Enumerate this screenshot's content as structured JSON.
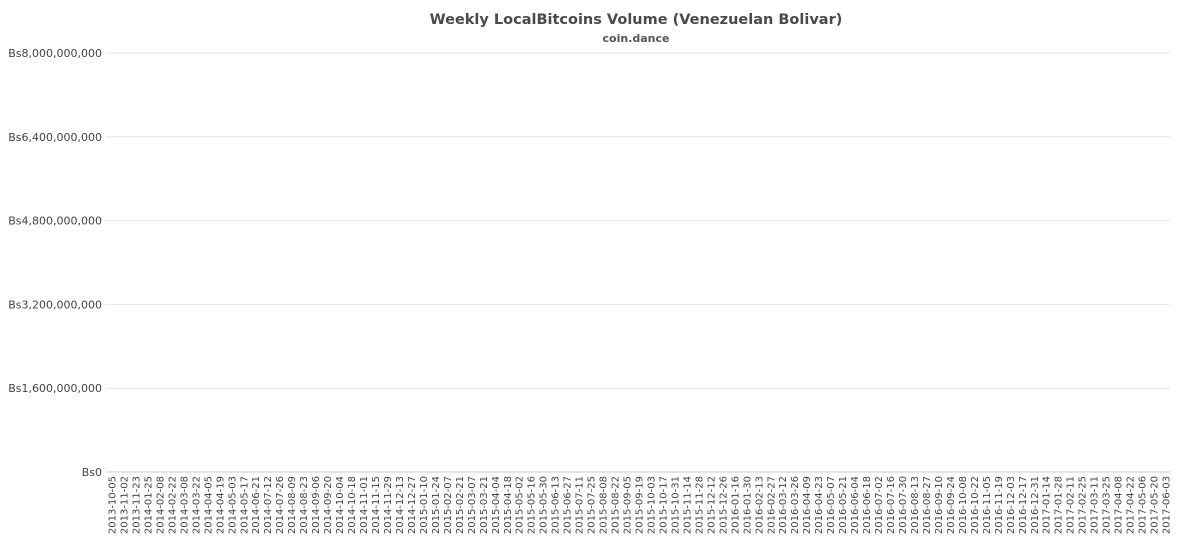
{
  "chart_data": {
    "type": "bar",
    "title": "Weekly LocalBitcoins Volume (Venezuelan Bolivar)",
    "subtitle": "coin.dance",
    "xlabel": "",
    "ylabel": "",
    "ylim": [
      0,
      8000000000
    ],
    "y_ticks": [
      {
        "value": 0,
        "label": "Bs0"
      },
      {
        "value": 1600000000,
        "label": "Bs1,600,000,000"
      },
      {
        "value": 3200000000,
        "label": "Bs3,200,000,000"
      },
      {
        "value": 4800000000,
        "label": "Bs4,800,000,000"
      },
      {
        "value": 6400000000,
        "label": "Bs6,400,000,000"
      },
      {
        "value": 8000000000,
        "label": "Bs8,000,000,000"
      }
    ],
    "grid": true,
    "bar_color": "#4a90e2",
    "x_tick_labels": [
      "2013-10-05",
      "2013-11-02",
      "2013-11-23",
      "2014-01-25",
      "2014-02-08",
      "2014-02-22",
      "2014-03-08",
      "2014-03-22",
      "2014-04-05",
      "2014-04-19",
      "2014-05-03",
      "2014-05-17",
      "2014-06-21",
      "2014-07-12",
      "2014-07-26",
      "2014-08-09",
      "2014-08-23",
      "2014-09-06",
      "2014-09-20",
      "2014-10-04",
      "2014-10-18",
      "2014-11-01",
      "2014-11-15",
      "2014-11-29",
      "2014-12-13",
      "2014-12-27",
      "2015-01-10",
      "2015-01-24",
      "2015-02-07",
      "2015-02-21",
      "2015-03-07",
      "2015-03-21",
      "2015-04-04",
      "2015-04-18",
      "2015-05-02",
      "2015-05-16",
      "2015-05-30",
      "2015-06-13",
      "2015-06-27",
      "2015-07-11",
      "2015-07-25",
      "2015-08-08",
      "2015-08-22",
      "2015-09-05",
      "2015-09-19",
      "2015-10-03",
      "2015-10-17",
      "2015-10-31",
      "2015-11-14",
      "2015-11-28",
      "2015-12-12",
      "2015-12-26",
      "2016-01-16",
      "2016-01-30",
      "2016-02-13",
      "2016-02-27",
      "2016-03-12",
      "2016-03-26",
      "2016-04-09",
      "2016-04-23",
      "2016-05-07",
      "2016-05-21",
      "2016-06-04",
      "2016-06-18",
      "2016-07-02",
      "2016-07-16",
      "2016-07-30",
      "2016-08-13",
      "2016-08-27",
      "2016-09-10",
      "2016-09-24",
      "2016-10-08",
      "2016-10-22",
      "2016-11-05",
      "2016-11-19",
      "2016-12-03",
      "2016-12-17",
      "2016-12-31",
      "2017-01-14",
      "2017-01-28",
      "2017-02-11",
      "2017-02-25",
      "2017-03-11",
      "2017-03-25",
      "2017-04-08",
      "2017-04-22",
      "2017-05-06",
      "2017-05-20",
      "2017-06-03"
    ],
    "values": [
      0,
      0,
      0,
      0,
      0,
      0,
      0,
      0,
      0,
      0,
      0,
      0,
      0,
      0,
      0,
      0,
      0,
      0,
      0,
      0,
      0,
      0,
      0,
      0,
      0,
      0,
      0,
      0,
      0,
      0,
      0,
      0,
      0,
      0,
      0,
      0,
      0,
      0,
      0,
      0,
      0,
      0,
      0,
      0,
      0,
      0,
      0,
      0,
      0,
      0,
      0,
      0,
      0,
      0,
      0,
      0,
      0,
      0,
      0,
      0,
      0,
      0,
      0,
      0,
      0,
      0,
      0,
      0,
      0,
      0,
      0,
      0,
      0,
      0,
      0,
      0,
      0,
      0,
      0,
      0,
      0,
      0,
      0,
      0,
      0,
      0,
      0,
      0,
      0,
      0,
      0,
      0,
      0,
      0,
      0,
      0,
      0,
      0,
      0,
      0,
      0,
      0,
      0,
      0,
      0,
      0,
      0,
      0,
      0,
      0,
      0,
      0,
      0,
      0,
      0,
      0,
      0,
      0,
      0,
      0,
      0,
      0,
      0,
      0,
      0,
      0,
      0,
      0,
      0,
      0,
      0,
      0,
      0,
      0,
      0,
      0,
      0,
      0,
      0,
      0,
      0,
      0,
      0,
      0,
      0,
      0,
      0,
      0,
      0,
      0,
      0,
      0,
      0,
      0,
      0,
      0,
      0,
      0,
      0,
      0,
      0,
      0,
      0,
      0,
      0,
      0,
      0,
      0,
      0,
      0,
      0,
      0,
      0,
      0,
      0,
      0,
      0,
      0,
      0,
      0,
      0,
      0,
      0,
      0,
      0,
      0,
      0,
      0,
      0,
      0,
      0,
      0,
      0,
      0,
      0,
      0,
      0,
      0,
      0,
      0,
      0,
      0,
      0,
      0,
      0,
      0,
      0,
      0,
      0,
      0,
      0,
      0,
      0,
      0,
      0,
      0,
      0,
      0,
      0,
      0,
      0,
      0,
      0,
      0,
      0,
      0,
      0,
      0,
      0,
      0,
      0,
      0,
      0,
      0,
      0,
      0,
      0,
      0,
      0,
      0,
      0,
      0,
      0,
      0,
      0,
      0,
      0,
      0,
      0,
      0,
      0,
      0,
      0,
      0,
      0,
      0,
      0,
      0,
      0,
      0,
      0,
      0,
      0,
      0,
      0,
      0,
      0,
      0,
      0,
      0,
      0,
      0,
      0,
      0,
      0,
      0,
      0,
      0,
      0,
      0,
      0,
      0,
      0,
      0,
      0,
      0,
      0,
      0,
      0,
      0,
      0,
      0,
      0,
      0,
      0,
      0,
      0,
      0,
      0,
      0,
      0,
      0,
      0,
      0,
      0,
      0,
      0,
      0,
      0,
      0,
      0,
      0,
      0,
      0,
      0,
      0,
      0,
      0,
      0,
      0,
      0,
      0,
      0,
      0,
      0,
      0,
      0,
      0,
      0,
      0,
      0,
      0,
      0,
      0,
      0,
      0,
      0,
      0,
      0,
      0,
      0,
      0,
      0,
      0,
      0,
      0,
      0,
      0,
      0,
      0,
      0,
      0,
      0,
      0,
      0,
      0,
      0,
      0,
      0,
      0,
      0,
      0,
      0,
      0,
      0,
      0,
      0,
      0,
      0,
      0,
      0,
      0,
      0,
      0,
      0,
      0,
      0,
      0,
      0,
      0,
      0,
      0,
      0,
      0,
      0,
      0,
      0,
      0,
      0,
      0,
      0,
      0,
      0,
      0,
      0,
      0,
      0,
      0,
      0,
      0,
      0,
      0,
      0,
      0,
      0,
      0,
      0,
      0,
      0,
      0,
      0,
      0,
      0,
      0,
      0,
      0,
      0,
      0,
      0,
      0,
      0,
      0,
      0,
      0,
      0,
      0,
      0,
      0,
      0,
      0,
      0,
      0,
      0,
      0,
      0,
      0,
      0,
      0,
      0,
      0,
      0,
      0,
      0,
      0,
      0,
      0,
      0,
      0,
      0,
      0,
      0,
      0,
      0,
      0,
      0,
      0,
      0,
      0,
      0,
      0,
      0,
      0,
      0,
      0,
      0,
      0,
      0,
      0,
      0,
      0,
      0,
      0,
      0,
      0,
      0,
      0,
      0,
      0,
      0,
      0,
      0,
      0,
      0,
      0,
      0,
      0,
      0,
      0,
      0,
      0,
      0,
      0,
      0,
      0,
      0,
      0,
      0,
      0,
      0,
      0,
      0,
      0,
      0,
      0,
      0,
      0,
      0,
      0,
      0,
      0,
      0,
      0,
      0,
      0,
      0,
      0,
      0,
      0,
      0,
      0,
      0,
      0,
      0,
      0,
      0,
      0,
      0,
      0,
      0,
      0,
      0,
      0,
      0,
      0,
      0,
      0,
      0,
      0,
      0,
      0,
      0,
      0,
      0,
      0,
      0,
      0,
      0,
      0,
      0,
      0,
      0,
      0,
      0,
      0,
      0,
      0,
      0,
      0,
      0,
      0,
      0,
      0,
      0,
      0,
      0,
      0,
      0,
      0,
      0,
      0,
      0,
      0,
      0,
      0,
      0,
      0,
      0,
      0,
      0,
      0,
      0,
      0,
      0,
      0,
      0,
      0,
      0,
      0,
      0,
      0,
      0,
      0,
      0,
      0,
      0,
      0,
      0,
      0,
      0,
      0,
      0,
      0,
      0,
      0,
      0,
      0,
      0,
      0,
      0,
      0,
      0,
      0,
      0,
      0,
      0,
      0,
      0,
      0,
      0,
      0,
      0,
      0,
      0,
      0,
      0,
      0,
      0,
      0,
      0,
      0,
      0,
      0,
      0,
      0,
      0,
      0,
      0,
      0,
      0,
      0,
      0,
      0,
      0,
      0,
      0,
      0,
      0,
      0,
      0,
      0,
      0,
      0,
      0,
      0,
      0,
      0,
      0,
      0,
      0,
      0,
      0,
      0,
      0,
      0,
      0,
      0,
      0,
      0,
      0,
      0,
      0,
      0,
      0,
      0,
      0,
      0,
      0,
      0,
      0,
      0,
      0,
      0,
      0,
      0,
      0,
      0,
      0,
      0,
      0,
      0,
      0,
      0,
      0,
      0,
      0,
      0,
      0,
      0,
      0,
      0,
      0,
      0,
      0,
      0,
      0,
      0,
      0,
      0,
      0,
      0,
      0,
      0,
      0,
      0,
      0,
      0,
      0,
      0,
      0,
      0,
      0,
      0,
      0,
      0,
      0,
      0,
      0,
      0,
      0,
      0,
      0,
      0,
      0,
      0,
      0,
      0,
      0,
      0,
      0,
      0,
      0,
      0,
      0,
      0,
      0,
      0,
      0,
      0,
      0,
      0,
      0,
      0,
      0,
      0,
      0,
      0,
      0,
      0,
      0,
      0,
      0,
      0,
      0,
      0,
      0,
      0,
      0,
      0,
      0,
      0,
      0,
      0,
      0,
      0,
      0,
      0,
      0,
      0,
      0,
      0,
      0,
      0,
      0,
      0,
      0,
      0,
      0,
      0,
      0,
      0,
      0,
      0,
      0,
      0,
      0,
      0,
      0,
      0,
      0,
      0,
      0,
      0,
      0,
      0,
      0,
      0,
      0,
      0,
      0,
      0,
      0,
      0,
      0,
      0,
      0,
      0,
      0,
      0,
      0,
      0,
      0,
      0,
      0,
      0,
      0,
      0,
      0,
      0,
      0,
      0,
      0,
      0,
      0,
      0,
      0,
      0,
      0,
      0,
      0,
      0,
      0,
      0,
      0,
      0,
      0,
      0,
      0,
      0,
      0,
      0,
      0,
      0,
      0,
      0,
      0,
      0,
      0,
      0,
      0,
      0,
      0,
      0,
      0,
      0,
      0,
      0,
      0,
      0,
      0,
      0,
      0,
      0,
      0,
      0,
      0,
      0,
      0,
      0,
      0,
      0,
      0,
      0,
      0,
      0,
      0,
      0,
      0,
      0,
      0,
      0,
      0,
      0,
      0,
      0,
      0,
      0,
      0,
      0,
      0,
      0,
      0,
      0,
      0,
      0,
      0,
      0,
      0,
      0,
      0,
      0,
      0,
      0,
      0,
      0,
      0,
      0,
      0,
      0,
      0,
      0,
      0,
      0,
      0,
      0,
      0,
      0,
      0,
      0,
      0,
      0,
      0,
      0,
      0,
      0,
      0,
      0,
      0,
      0,
      0,
      0,
      0,
      0,
      0,
      0,
      0,
      0,
      0,
      0,
      0,
      0,
      0,
      0,
      0,
      0,
      0,
      0,
      0,
      0,
      0,
      0,
      0,
      0,
      0,
      0,
      0,
      0,
      0,
      0,
      0,
      0,
      0,
      0,
      0,
      0,
      0,
      0,
      0,
      0,
      0,
      0,
      0,
      0,
      0,
      0,
      0,
      0,
      0,
      0,
      0,
      0,
      0,
      0,
      0,
      0,
      0,
      0,
      0,
      0,
      0,
      0,
      0,
      0,
      0,
      0,
      0,
      0,
      0,
      0,
      0,
      0,
      0,
      0,
      0,
      0,
      0,
      0,
      0,
      0,
      0,
      0,
      0,
      0,
      0,
      0,
      0,
      0,
      0,
      0,
      0,
      0,
      0,
      0,
      0,
      0,
      0,
      0,
      0,
      0,
      0,
      0,
      0,
      0,
      0,
      0,
      0,
      0,
      0,
      0,
      0,
      0,
      0,
      0,
      0,
      0,
      0,
      0,
      0,
      0,
      0,
      0,
      0,
      0,
      0,
      0,
      0,
      0,
      0,
      0,
      0,
      0,
      0,
      0,
      0,
      0,
      0,
      0,
      0,
      0,
      0,
      0,
      0,
      0,
      0,
      0,
      0,
      0,
      0,
      0,
      0,
      0,
      0,
      0,
      0,
      0,
      0,
      0,
      0,
      0,
      0,
      0,
      0,
      0,
      0,
      0,
      0,
      0,
      0,
      0,
      0,
      0,
      0,
      0,
      0,
      0,
      0,
      0,
      0,
      0,
      0,
      0,
      0,
      0,
      0,
      0,
      0,
      0,
      0,
      0,
      0,
      0,
      0,
      0,
      0,
      0,
      0,
      0,
      0,
      0,
      0,
      0,
      0,
      0,
      0,
      0,
      0,
      0,
      0,
      0,
      0,
      0,
      0,
      0,
      0,
      0,
      0,
      0,
      0,
      0,
      0,
      0,
      0,
      0,
      0,
      0,
      0,
      0,
      0,
      0,
      0,
      0,
      0,
      0,
      0,
      0,
      0,
      0,
      0,
      0,
      0,
      0,
      0,
      0,
      0,
      0,
      0,
      0,
      0,
      0,
      0,
      0,
      0,
      0,
      0,
      0,
      0,
      0,
      0,
      0,
      0,
      0,
      0,
      0,
      0,
      0,
      0,
      0,
      0,
      0,
      0,
      0,
      0,
      0,
      0,
      0,
      0,
      0,
      0,
      0,
      0,
      0,
      0,
      0,
      0,
      0,
      0,
      0,
      0,
      0,
      0,
      0,
      0,
      0,
      0,
      0,
      0,
      0,
      0,
      0,
      0,
      0,
      0,
      0,
      0,
      0,
      0,
      0,
      0,
      0,
      0,
      0,
      0,
      0,
      0,
      0,
      0,
      0,
      0,
      0,
      0,
      0,
      0,
      0,
      0,
      0,
      0,
      0,
      0,
      0,
      0,
      0,
      0,
      0,
      0,
      0,
      0,
      0,
      0,
      0,
      0,
      0,
      0,
      0,
      0,
      0,
      0,
      0,
      0,
      0,
      0,
      0,
      0,
      0,
      0,
      0,
      0,
      0,
      0,
      0,
      0,
      0,
      0,
      0,
      0,
      0,
      0,
      0,
      0,
      0,
      0,
      0,
      0,
      0,
      0,
      0,
      0,
      0,
      0,
      0,
      0,
      0,
      0,
      0,
      0,
      0,
      0,
      0,
      0,
      0,
      0,
      0,
      0,
      0,
      0,
      0,
      0,
      0,
      0,
      0,
      0,
      0,
      0,
      0,
      0,
      0,
      0,
      0,
      0,
      0,
      0,
      0,
      0,
      0,
      0,
      0,
      0,
      0,
      0,
      0,
      0,
      0,
      0,
      0,
      0,
      0,
      0,
      0,
      0,
      0,
      0,
      0,
      0,
      0,
      0,
      0,
      0,
      0,
      0,
      0,
      0,
      0,
      0,
      0,
      0,
      0,
      0,
      0,
      0,
      0,
      0,
      0,
      0,
      0,
      0,
      0,
      0,
      0,
      0,
      0,
      0,
      0,
      0,
      0,
      0,
      0,
      0,
      0,
      0,
      0,
      0,
      0,
      0,
      0,
      0,
      0,
      0,
      0,
      0,
      0,
      0,
      0,
      0,
      0,
      0,
      0,
      0,
      0,
      0,
      0,
      0,
      0,
      0,
      0,
      0,
      0,
      0,
      0,
      0,
      0,
      0,
      0,
      0,
      0,
      0,
      0,
      0,
      0,
      0,
      0,
      0,
      0,
      0,
      0,
      0,
      0,
      0,
      0,
      0,
      0,
      0,
      0,
      0,
      0,
      0,
      0,
      0,
      0,
      0,
      0,
      0,
      0,
      0,
      0,
      0,
      0,
      0,
      0,
      0,
      0,
      0,
      0,
      0,
      0,
      0,
      0,
      0,
      0,
      0,
      0,
      0,
      0,
      0,
      0,
      0,
      0,
      0,
      0,
      0,
      0,
      0,
      0
    ]
  }
}
